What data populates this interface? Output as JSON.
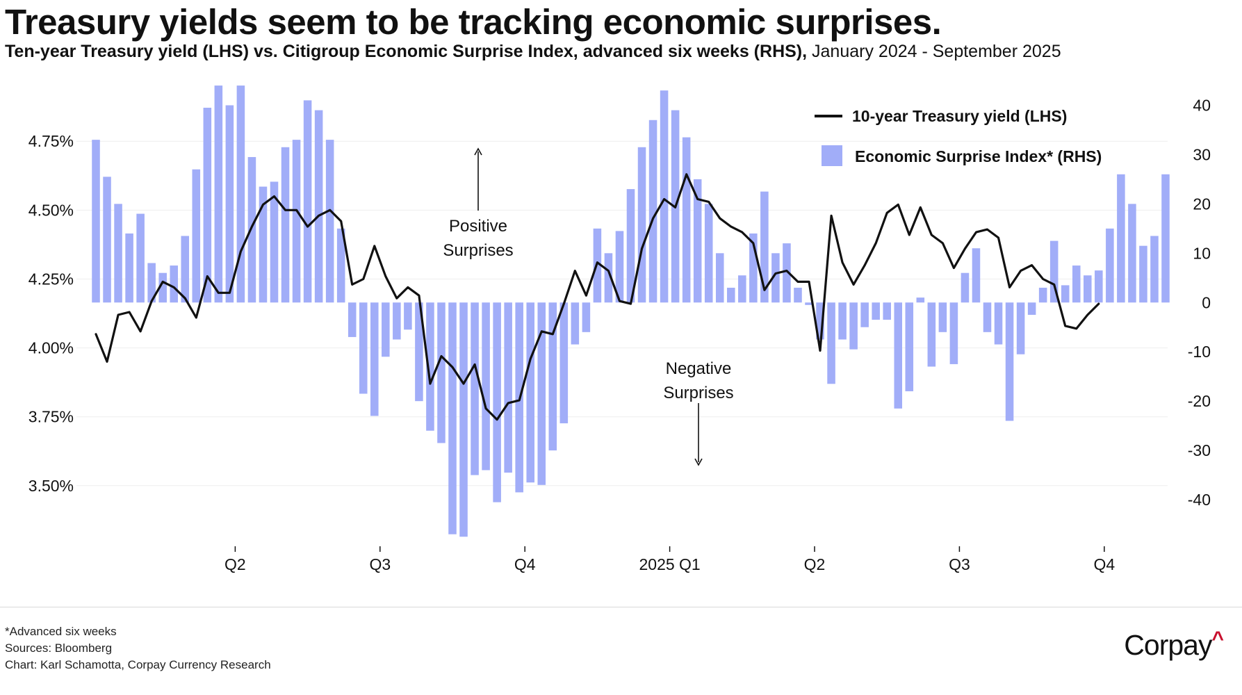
{
  "header": {
    "title": "Treasury yields seem to be tracking economic surprises.",
    "subtitle_main": "Ten-year Treasury yield (LHS) vs. Citigroup Economic Surprise Index, advanced six weeks (RHS),",
    "subtitle_range": " January 2024 - September 2025"
  },
  "chart_data": {
    "type": "bar+line",
    "legend": {
      "position": "top-right",
      "entries": [
        "10-year Treasury yield (LHS)",
        "Economic Surprise Index* (RHS)"
      ]
    },
    "x_tick_labels": [
      "Q2",
      "Q3",
      "Q4",
      "2025 Q1",
      "Q2",
      "Q3",
      "Q4"
    ],
    "left_axis": {
      "ticks": [
        4.75,
        4.5,
        4.25,
        4.0,
        3.75,
        3.5
      ],
      "tick_labels": [
        "4.75%",
        "4.50%",
        "4.25%",
        "4.00%",
        "3.75%",
        "3.50%"
      ],
      "range": [
        3.27,
        4.97
      ]
    },
    "right_axis": {
      "ticks": [
        40,
        30,
        20,
        10,
        0,
        -10,
        -20,
        -30,
        -40
      ],
      "tick_labels": [
        "40",
        "30",
        "20",
        "10",
        "0",
        "-10",
        "-20",
        "-30",
        "-40"
      ],
      "range": [
        -50,
        45
      ]
    },
    "grid": "horizontal-left-axis",
    "series": [
      {
        "name": "10-year Treasury yield (LHS)",
        "type": "line",
        "color": "#111111",
        "values": [
          4.05,
          3.95,
          4.12,
          4.13,
          4.06,
          4.17,
          4.24,
          4.22,
          4.18,
          4.11,
          4.26,
          4.2,
          4.2,
          4.35,
          4.44,
          4.52,
          4.55,
          4.5,
          4.5,
          4.44,
          4.48,
          4.5,
          4.46,
          4.23,
          4.25,
          4.37,
          4.26,
          4.18,
          4.22,
          4.19,
          3.87,
          3.97,
          3.93,
          3.87,
          3.94,
          3.78,
          3.74,
          3.8,
          3.81,
          3.96,
          4.06,
          4.05,
          4.16,
          4.28,
          4.19,
          4.31,
          4.28,
          4.17,
          4.16,
          4.36,
          4.47,
          4.54,
          4.51,
          4.63,
          4.54,
          4.53,
          4.47,
          4.44,
          4.42,
          4.38,
          4.21,
          4.27,
          4.28,
          4.24,
          4.24,
          3.99,
          4.48,
          4.31,
          4.23,
          4.3,
          4.38,
          4.49,
          4.52,
          4.41,
          4.51,
          4.41,
          4.38,
          4.29,
          4.36,
          4.42,
          4.43,
          4.4,
          4.22,
          4.28,
          4.3,
          4.25,
          4.23,
          4.08,
          4.07,
          4.12,
          4.16
        ]
      },
      {
        "name": "Economic Surprise Index* (RHS)",
        "type": "bar",
        "color": "#a1adf8",
        "values": [
          33,
          25.5,
          20,
          14,
          18,
          8,
          6,
          7.5,
          13.5,
          27,
          39.5,
          44,
          40,
          44,
          29.5,
          23.5,
          24.5,
          31.5,
          33,
          41,
          39,
          33,
          15,
          -7,
          -18.5,
          -23,
          -11,
          -7.5,
          -5.5,
          -20,
          -26,
          -28.5,
          -47,
          -47.5,
          -35,
          -34,
          -40.5,
          -34.5,
          -38.5,
          -36.5,
          -37,
          -30,
          -24.5,
          -8.5,
          -6,
          15,
          10,
          14.5,
          23,
          31.5,
          37,
          43,
          39,
          33.5,
          25,
          20,
          10,
          3,
          5.5,
          14,
          22.5,
          10,
          12,
          3,
          -0.5,
          -7.5,
          -16.5,
          -7.5,
          -9.5,
          -5,
          -3.5,
          -3.5,
          -21.5,
          -18,
          1,
          -13,
          -6,
          -12.5,
          6,
          11,
          -6,
          -8.5,
          -24,
          -10.5,
          -2.5,
          3,
          12.5,
          3.5,
          7.5,
          5.5,
          6.5,
          15,
          26,
          20,
          11.5,
          13.5,
          26
        ]
      }
    ],
    "annotations": [
      {
        "lines": [
          "Positive",
          "Surprises"
        ],
        "arrow": "up"
      },
      {
        "lines": [
          "Negative",
          "Surprises"
        ],
        "arrow": "down"
      }
    ]
  },
  "footer": {
    "note": "*Advanced six weeks",
    "sources": "Sources: Bloomberg",
    "credit": "Chart: Karl Schamotta, Corpay Currency Research",
    "logo_text": "Corpay",
    "logo_mark": "^"
  }
}
